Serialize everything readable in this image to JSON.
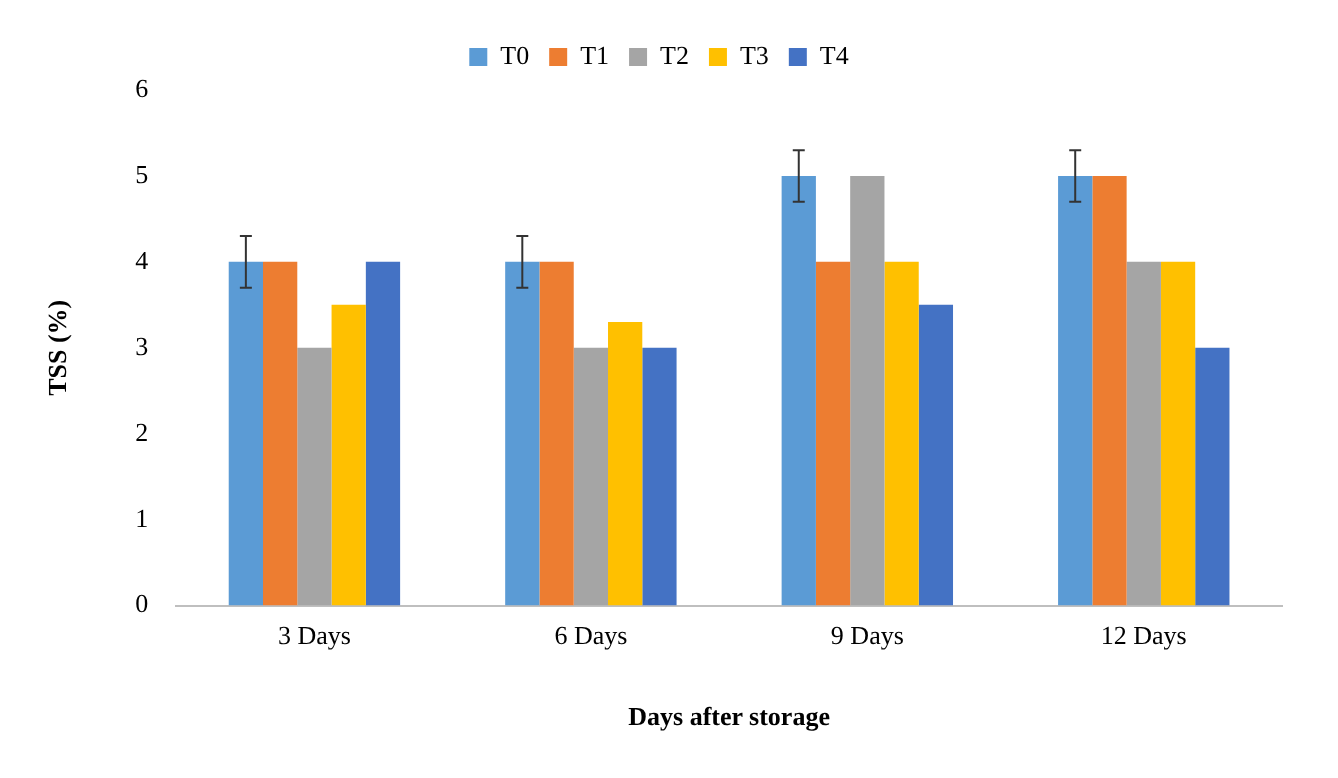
{
  "chart_data": {
    "type": "bar",
    "xlabel": "Days after storage",
    "ylabel": "TSS (%)",
    "categories": [
      "3 Days",
      "6 Days",
      "9 Days",
      "12 Days"
    ],
    "series": [
      {
        "name": "T0",
        "color": "#5b9bd5",
        "values": [
          4,
          4,
          5,
          5
        ],
        "errors": [
          0.3,
          0.3,
          0.3,
          0.3
        ]
      },
      {
        "name": "T1",
        "color": "#ed7d31",
        "values": [
          4,
          4,
          4,
          5
        ]
      },
      {
        "name": "T2",
        "color": "#a5a5a5",
        "values": [
          3,
          3,
          5,
          4
        ]
      },
      {
        "name": "T3",
        "color": "#ffc000",
        "values": [
          3.5,
          3.3,
          4,
          4
        ]
      },
      {
        "name": "T4",
        "color": "#4472c4",
        "values": [
          4,
          3,
          3.5,
          3
        ]
      }
    ],
    "ylim": [
      0,
      6
    ],
    "yticks": [
      0,
      1,
      2,
      3,
      4,
      5,
      6
    ],
    "grid": false,
    "legend": "top"
  }
}
